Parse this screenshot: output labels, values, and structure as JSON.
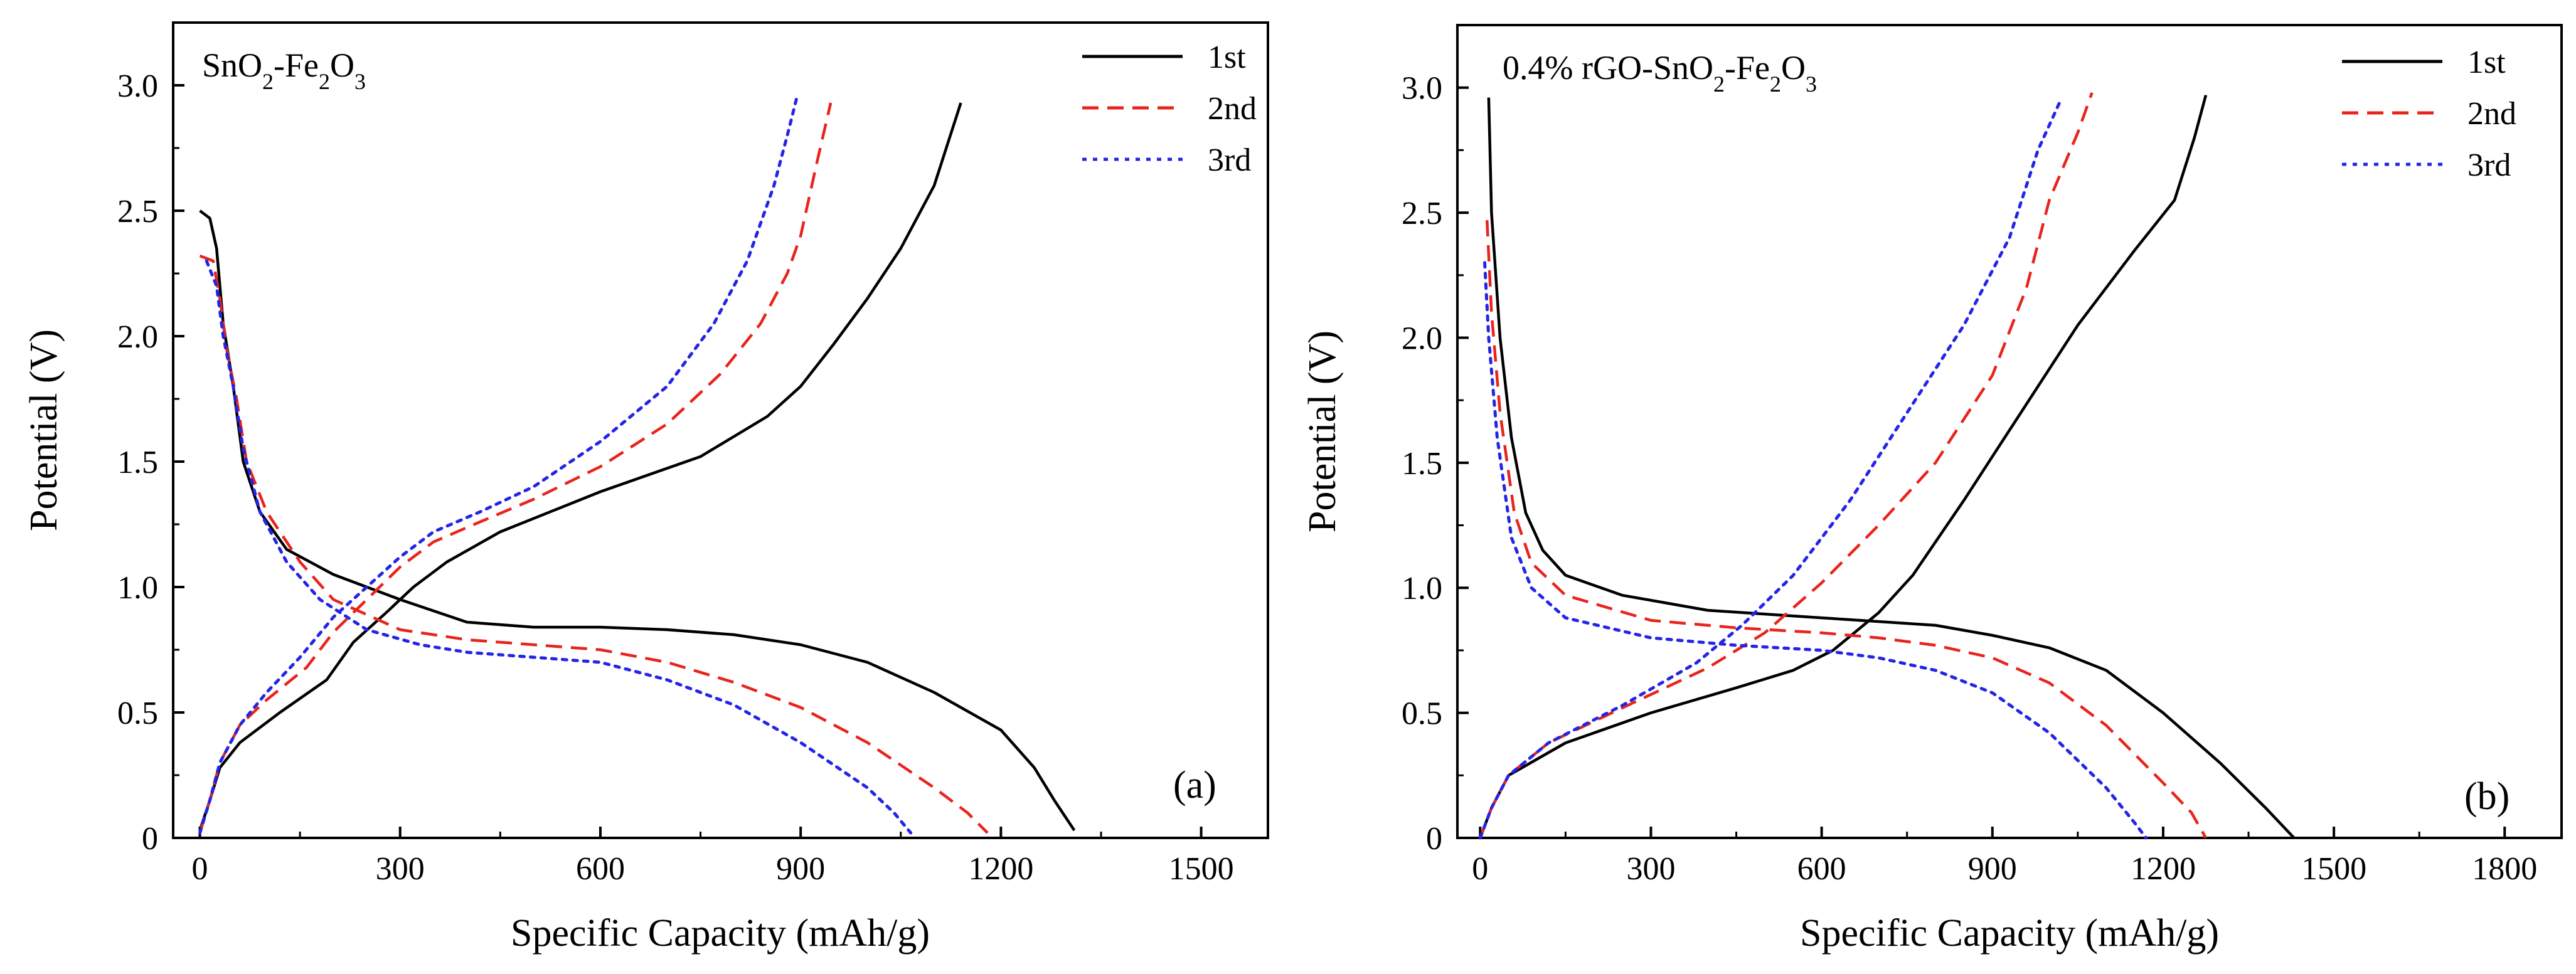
{
  "chart_data": [
    {
      "type": "line",
      "panel_label": "(a)",
      "title": "SnO2-Fe2O3",
      "title_parts": {
        "a": "SnO",
        "b": "2",
        "c": "-Fe",
        "d": "2",
        "e": "O",
        "f": "3"
      },
      "xlabel": "Specific Capacity (mAh/g)",
      "ylabel": "Potential (V)",
      "xlim": [
        -40,
        1600
      ],
      "ylim": [
        0,
        3.25
      ],
      "xticks": [
        0,
        300,
        600,
        900,
        1200,
        1500
      ],
      "xtick_labels": [
        "0",
        "300",
        "600",
        "900",
        "1200",
        "1500"
      ],
      "yticks": [
        0,
        0.5,
        1.0,
        1.5,
        2.0,
        2.5,
        3.0
      ],
      "ytick_labels": [
        "0",
        "0.5",
        "1.0",
        "1.5",
        "2.0",
        "2.5",
        "3.0"
      ],
      "legend_position": "top-right",
      "series": [
        {
          "name": "1st",
          "color": "#000000",
          "style": "solid",
          "discharge": [
            [
              0,
              2.5
            ],
            [
              15,
              2.47
            ],
            [
              25,
              2.35
            ],
            [
              35,
              2.05
            ],
            [
              50,
              1.8
            ],
            [
              65,
              1.5
            ],
            [
              90,
              1.3
            ],
            [
              130,
              1.15
            ],
            [
              200,
              1.05
            ],
            [
              300,
              0.95
            ],
            [
              400,
              0.86
            ],
            [
              500,
              0.84
            ],
            [
              600,
              0.84
            ],
            [
              700,
              0.83
            ],
            [
              800,
              0.81
            ],
            [
              900,
              0.77
            ],
            [
              1000,
              0.7
            ],
            [
              1100,
              0.58
            ],
            [
              1200,
              0.43
            ],
            [
              1250,
              0.28
            ],
            [
              1280,
              0.15
            ],
            [
              1310,
              0.03
            ]
          ],
          "charge": [
            [
              0,
              0.03
            ],
            [
              15,
              0.15
            ],
            [
              30,
              0.28
            ],
            [
              60,
              0.38
            ],
            [
              120,
              0.5
            ],
            [
              190,
              0.63
            ],
            [
              230,
              0.78
            ],
            [
              280,
              0.9
            ],
            [
              320,
              1.0
            ],
            [
              370,
              1.1
            ],
            [
              450,
              1.22
            ],
            [
              600,
              1.38
            ],
            [
              750,
              1.52
            ],
            [
              850,
              1.68
            ],
            [
              900,
              1.8
            ],
            [
              950,
              1.97
            ],
            [
              1000,
              2.15
            ],
            [
              1050,
              2.35
            ],
            [
              1100,
              2.6
            ],
            [
              1140,
              2.93
            ]
          ]
        },
        {
          "name": "2nd",
          "color": "#e8241c",
          "style": "dashed",
          "discharge": [
            [
              0,
              2.32
            ],
            [
              20,
              2.3
            ],
            [
              30,
              2.15
            ],
            [
              40,
              1.95
            ],
            [
              55,
              1.75
            ],
            [
              70,
              1.5
            ],
            [
              100,
              1.3
            ],
            [
              150,
              1.1
            ],
            [
              200,
              0.95
            ],
            [
              300,
              0.83
            ],
            [
              400,
              0.79
            ],
            [
              500,
              0.77
            ],
            [
              600,
              0.75
            ],
            [
              700,
              0.7
            ],
            [
              800,
              0.62
            ],
            [
              900,
              0.52
            ],
            [
              1000,
              0.38
            ],
            [
              1100,
              0.2
            ],
            [
              1150,
              0.1
            ],
            [
              1180,
              0.02
            ]
          ],
          "charge": [
            [
              0,
              0.02
            ],
            [
              15,
              0.15
            ],
            [
              30,
              0.3
            ],
            [
              60,
              0.45
            ],
            [
              100,
              0.55
            ],
            [
              160,
              0.68
            ],
            [
              200,
              0.82
            ],
            [
              250,
              0.95
            ],
            [
              300,
              1.08
            ],
            [
              350,
              1.18
            ],
            [
              420,
              1.26
            ],
            [
              500,
              1.35
            ],
            [
              600,
              1.48
            ],
            [
              700,
              1.65
            ],
            [
              780,
              1.85
            ],
            [
              840,
              2.05
            ],
            [
              880,
              2.25
            ],
            [
              900,
              2.4
            ],
            [
              925,
              2.7
            ],
            [
              945,
              2.93
            ]
          ]
        },
        {
          "name": "3rd",
          "color": "#2424e8",
          "style": "dotted",
          "discharge": [
            [
              10,
              2.3
            ],
            [
              25,
              2.2
            ],
            [
              35,
              2.0
            ],
            [
              50,
              1.8
            ],
            [
              65,
              1.55
            ],
            [
              90,
              1.3
            ],
            [
              130,
              1.1
            ],
            [
              180,
              0.95
            ],
            [
              250,
              0.83
            ],
            [
              330,
              0.77
            ],
            [
              400,
              0.74
            ],
            [
              500,
              0.72
            ],
            [
              600,
              0.7
            ],
            [
              700,
              0.63
            ],
            [
              800,
              0.53
            ],
            [
              900,
              0.38
            ],
            [
              1000,
              0.2
            ],
            [
              1040,
              0.1
            ],
            [
              1065,
              0.02
            ]
          ],
          "charge": [
            [
              0,
              0.02
            ],
            [
              15,
              0.15
            ],
            [
              30,
              0.3
            ],
            [
              60,
              0.45
            ],
            [
              100,
              0.58
            ],
            [
              150,
              0.72
            ],
            [
              200,
              0.88
            ],
            [
              250,
              1.0
            ],
            [
              300,
              1.12
            ],
            [
              350,
              1.22
            ],
            [
              420,
              1.3
            ],
            [
              500,
              1.4
            ],
            [
              600,
              1.58
            ],
            [
              700,
              1.8
            ],
            [
              770,
              2.05
            ],
            [
              820,
              2.3
            ],
            [
              860,
              2.6
            ],
            [
              880,
              2.8
            ],
            [
              895,
              2.96
            ]
          ]
        }
      ]
    },
    {
      "type": "line",
      "panel_label": "(b)",
      "title": "0.4% rGO-SnO2-Fe2O3",
      "title_parts": {
        "a": "0.4% rGO-SnO",
        "b": "2",
        "c": "-Fe",
        "d": "2",
        "e": "O",
        "f": "3"
      },
      "xlabel": "Specific Capacity (mAh/g)",
      "ylabel": "Potential (V)",
      "xlim": [
        -40,
        1900
      ],
      "ylim": [
        0,
        3.25
      ],
      "xticks": [
        0,
        300,
        600,
        900,
        1200,
        1500,
        1800
      ],
      "xtick_labels": [
        "0",
        "300",
        "600",
        "900",
        "1200",
        "1500",
        "1800"
      ],
      "yticks": [
        0,
        0.5,
        1.0,
        1.5,
        2.0,
        2.5,
        3.0
      ],
      "ytick_labels": [
        "0",
        "0.5",
        "1.0",
        "1.5",
        "2.0",
        "2.5",
        "3.0"
      ],
      "legend_position": "top-right",
      "series": [
        {
          "name": "1st",
          "color": "#000000",
          "style": "solid",
          "discharge": [
            [
              15,
              2.96
            ],
            [
              20,
              2.5
            ],
            [
              35,
              2.0
            ],
            [
              55,
              1.6
            ],
            [
              80,
              1.3
            ],
            [
              110,
              1.15
            ],
            [
              150,
              1.05
            ],
            [
              250,
              0.97
            ],
            [
              400,
              0.91
            ],
            [
              600,
              0.88
            ],
            [
              800,
              0.85
            ],
            [
              900,
              0.81
            ],
            [
              1000,
              0.76
            ],
            [
              1100,
              0.67
            ],
            [
              1200,
              0.5
            ],
            [
              1300,
              0.3
            ],
            [
              1380,
              0.12
            ],
            [
              1430,
              0.0
            ]
          ],
          "charge": [
            [
              0,
              0.0
            ],
            [
              20,
              0.12
            ],
            [
              50,
              0.25
            ],
            [
              150,
              0.38
            ],
            [
              300,
              0.5
            ],
            [
              450,
              0.6
            ],
            [
              550,
              0.67
            ],
            [
              620,
              0.75
            ],
            [
              700,
              0.9
            ],
            [
              760,
              1.05
            ],
            [
              850,
              1.35
            ],
            [
              950,
              1.7
            ],
            [
              1050,
              2.05
            ],
            [
              1150,
              2.35
            ],
            [
              1220,
              2.55
            ],
            [
              1255,
              2.8
            ],
            [
              1275,
              2.97
            ]
          ]
        },
        {
          "name": "2nd",
          "color": "#e8241c",
          "style": "dashed",
          "discharge": [
            [
              12,
              2.47
            ],
            [
              20,
              2.1
            ],
            [
              35,
              1.7
            ],
            [
              60,
              1.3
            ],
            [
              90,
              1.1
            ],
            [
              150,
              0.97
            ],
            [
              300,
              0.87
            ],
            [
              450,
              0.84
            ],
            [
              600,
              0.82
            ],
            [
              700,
              0.8
            ],
            [
              800,
              0.77
            ],
            [
              900,
              0.72
            ],
            [
              1000,
              0.62
            ],
            [
              1100,
              0.45
            ],
            [
              1200,
              0.22
            ],
            [
              1250,
              0.1
            ],
            [
              1275,
              0.0
            ]
          ],
          "charge": [
            [
              0,
              0.0
            ],
            [
              20,
              0.12
            ],
            [
              50,
              0.25
            ],
            [
              120,
              0.38
            ],
            [
              250,
              0.52
            ],
            [
              400,
              0.68
            ],
            [
              500,
              0.82
            ],
            [
              600,
              1.02
            ],
            [
              700,
              1.25
            ],
            [
              800,
              1.5
            ],
            [
              900,
              1.85
            ],
            [
              960,
              2.2
            ],
            [
              1000,
              2.55
            ],
            [
              1050,
              2.82
            ],
            [
              1075,
              2.98
            ]
          ]
        },
        {
          "name": "3rd",
          "color": "#2424e8",
          "style": "dotted",
          "discharge": [
            [
              8,
              2.3
            ],
            [
              15,
              2.0
            ],
            [
              30,
              1.6
            ],
            [
              55,
              1.2
            ],
            [
              90,
              1.0
            ],
            [
              150,
              0.88
            ],
            [
              300,
              0.8
            ],
            [
              450,
              0.77
            ],
            [
              600,
              0.75
            ],
            [
              700,
              0.72
            ],
            [
              800,
              0.67
            ],
            [
              900,
              0.58
            ],
            [
              1000,
              0.42
            ],
            [
              1100,
              0.2
            ],
            [
              1150,
              0.06
            ],
            [
              1170,
              0.0
            ]
          ],
          "charge": [
            [
              0,
              0.0
            ],
            [
              20,
              0.12
            ],
            [
              50,
              0.25
            ],
            [
              120,
              0.38
            ],
            [
              250,
              0.53
            ],
            [
              380,
              0.7
            ],
            [
              460,
              0.85
            ],
            [
              550,
              1.05
            ],
            [
              650,
              1.35
            ],
            [
              750,
              1.7
            ],
            [
              850,
              2.05
            ],
            [
              930,
              2.4
            ],
            [
              980,
              2.75
            ],
            [
              1020,
              2.95
            ]
          ]
        }
      ]
    }
  ]
}
